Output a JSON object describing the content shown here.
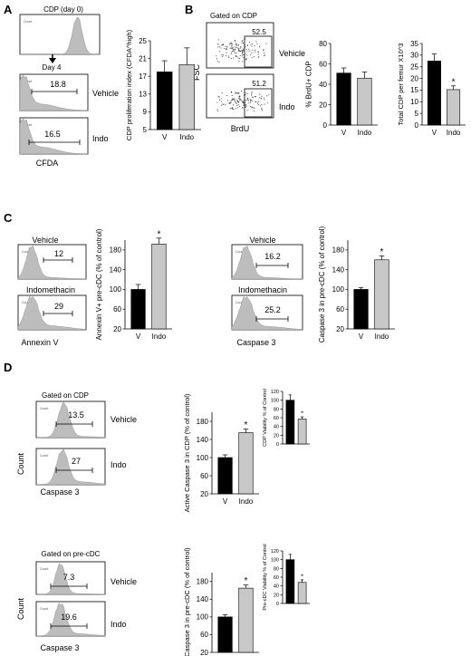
{
  "panels": {
    "A": {
      "label": "A",
      "histograms": [
        {
          "title": "CDP (day 0)",
          "gate": "",
          "side": ""
        },
        {
          "title": "",
          "gate": "18.8",
          "side": "Vehicle",
          "arrow": "Day 4"
        },
        {
          "title": "",
          "gate": "16.5",
          "side": "Indo"
        }
      ],
      "xlabel": "CFDA",
      "ytick": "Count"
    },
    "B": {
      "label": "B",
      "dot_title": "Gated on CDP",
      "dot_ylabel": "FSC",
      "dot_xlabel": "BrdU",
      "dots": [
        {
          "gate": "52.5",
          "side": "Vehicle"
        },
        {
          "gate": "51.2",
          "side": "Indo"
        }
      ]
    },
    "C": {
      "label": "C",
      "left": {
        "titles": [
          "Vehicle",
          "Indomethacin"
        ],
        "gates": [
          "12",
          "29"
        ],
        "xlabel": "Annexin V"
      },
      "right": {
        "titles": [
          "Vehicle",
          "Indomethacin"
        ],
        "gates": [
          "16.2",
          "25.2"
        ],
        "xlabel": "Caspase 3"
      }
    },
    "D": {
      "label": "D",
      "top": {
        "title": "Gated on CDP",
        "gates": [
          "13.5",
          "27"
        ],
        "sides": [
          "Vehicle",
          "Indo"
        ],
        "ylabel": "Count",
        "xlabel": "Caspase 3"
      },
      "bottom": {
        "title": "Gated on pre-cDC",
        "gates": [
          "7.3",
          "19.6"
        ],
        "sides": [
          "Vehicle",
          "Indo"
        ],
        "ylabel": "Count",
        "xlabel": "Caspase 3"
      }
    }
  },
  "colors": {
    "control_bar": "#000000",
    "treated_bar": "#c8c8c8",
    "histogram_fill": "#bdbdbd",
    "axis": "#000000"
  },
  "chart_data": [
    {
      "id": "A1",
      "type": "bar",
      "categories": [
        "V",
        "Indo"
      ],
      "values": [
        18,
        19.6
      ],
      "errors": [
        2.5,
        3.8
      ],
      "ylabel": "CDP proliferation index (CFDA^high)",
      "ylim": [
        5,
        25
      ],
      "yticks": [
        "5",
        "9",
        "13",
        "17",
        "21",
        "25"
      ],
      "significance": [
        "",
        ""
      ]
    },
    {
      "id": "B1",
      "type": "bar",
      "categories": [
        "V",
        "Indo"
      ],
      "values": [
        51,
        46
      ],
      "errors": [
        5,
        6
      ],
      "ylabel": "% BrdU+ CDP",
      "ylim": [
        0,
        80
      ],
      "yticks": [
        "0",
        "20",
        "40",
        "60",
        "80"
      ],
      "significance": [
        "",
        ""
      ]
    },
    {
      "id": "B2",
      "type": "bar",
      "categories": [
        "V",
        "Indo"
      ],
      "values": [
        27.5,
        15.2
      ],
      "errors": [
        3,
        1.6
      ],
      "ylabel": "Total CDP per femur X10^3",
      "ylim": [
        0,
        35
      ],
      "yticks": [
        "0",
        "5",
        "10",
        "15",
        "20",
        "25",
        "30",
        "35"
      ],
      "significance": [
        "",
        "*"
      ]
    },
    {
      "id": "C1",
      "type": "bar",
      "categories": [
        "V",
        "Indo"
      ],
      "values": [
        100,
        192
      ],
      "errors": [
        10,
        12
      ],
      "ylabel": "Annexin V+ pre-cDC (% of control)",
      "ylim": [
        20,
        200
      ],
      "yticks": [
        "20",
        "60",
        "100",
        "140",
        "180"
      ],
      "significance": [
        "",
        "*"
      ]
    },
    {
      "id": "C2",
      "type": "bar",
      "categories": [
        "V",
        "Indo"
      ],
      "values": [
        100,
        160
      ],
      "errors": [
        4,
        8
      ],
      "ylabel": "Caspase 3 in pre-cDC (% of control)",
      "ylim": [
        20,
        200
      ],
      "yticks": [
        "20",
        "60",
        "100",
        "140",
        "180"
      ],
      "significance": [
        "",
        "*"
      ]
    },
    {
      "id": "D1",
      "type": "bar",
      "categories": [
        "V",
        "Indo"
      ],
      "values": [
        100,
        155
      ],
      "errors": [
        6,
        8
      ],
      "ylabel": "Active Caspase 3 in CDP (% of control)",
      "ylim": [
        20,
        200
      ],
      "yticks": [
        "20",
        "60",
        "100",
        "140",
        "180"
      ],
      "significance": [
        "",
        "*"
      ]
    },
    {
      "id": "D2",
      "type": "bar",
      "categories": [
        "",
        ""
      ],
      "values": [
        100,
        57
      ],
      "errors": [
        12,
        5
      ],
      "ylabel": "CDP Viability % of Control",
      "ylim": [
        0,
        120
      ],
      "yticks": [
        "0",
        "20",
        "40",
        "60",
        "80",
        "100",
        "120"
      ],
      "significance": [
        "",
        "*"
      ]
    },
    {
      "id": "D3",
      "type": "bar",
      "categories": [
        "V",
        "Indo"
      ],
      "values": [
        100,
        165
      ],
      "errors": [
        5,
        7
      ],
      "ylabel": "Active Caspase 3 in pre-cDC (% of control)",
      "ylim": [
        20,
        200
      ],
      "yticks": [
        "20",
        "60",
        "100",
        "140",
        "180"
      ],
      "significance": [
        "",
        "*"
      ]
    },
    {
      "id": "D4",
      "type": "bar",
      "categories": [
        "",
        ""
      ],
      "values": [
        100,
        48
      ],
      "errors": [
        12,
        6
      ],
      "ylabel": "Pre-cDC Viability % of Control",
      "ylim": [
        0,
        120
      ],
      "yticks": [
        "0",
        "20",
        "40",
        "60",
        "80",
        "100",
        "120"
      ],
      "significance": [
        "",
        "*"
      ]
    }
  ]
}
